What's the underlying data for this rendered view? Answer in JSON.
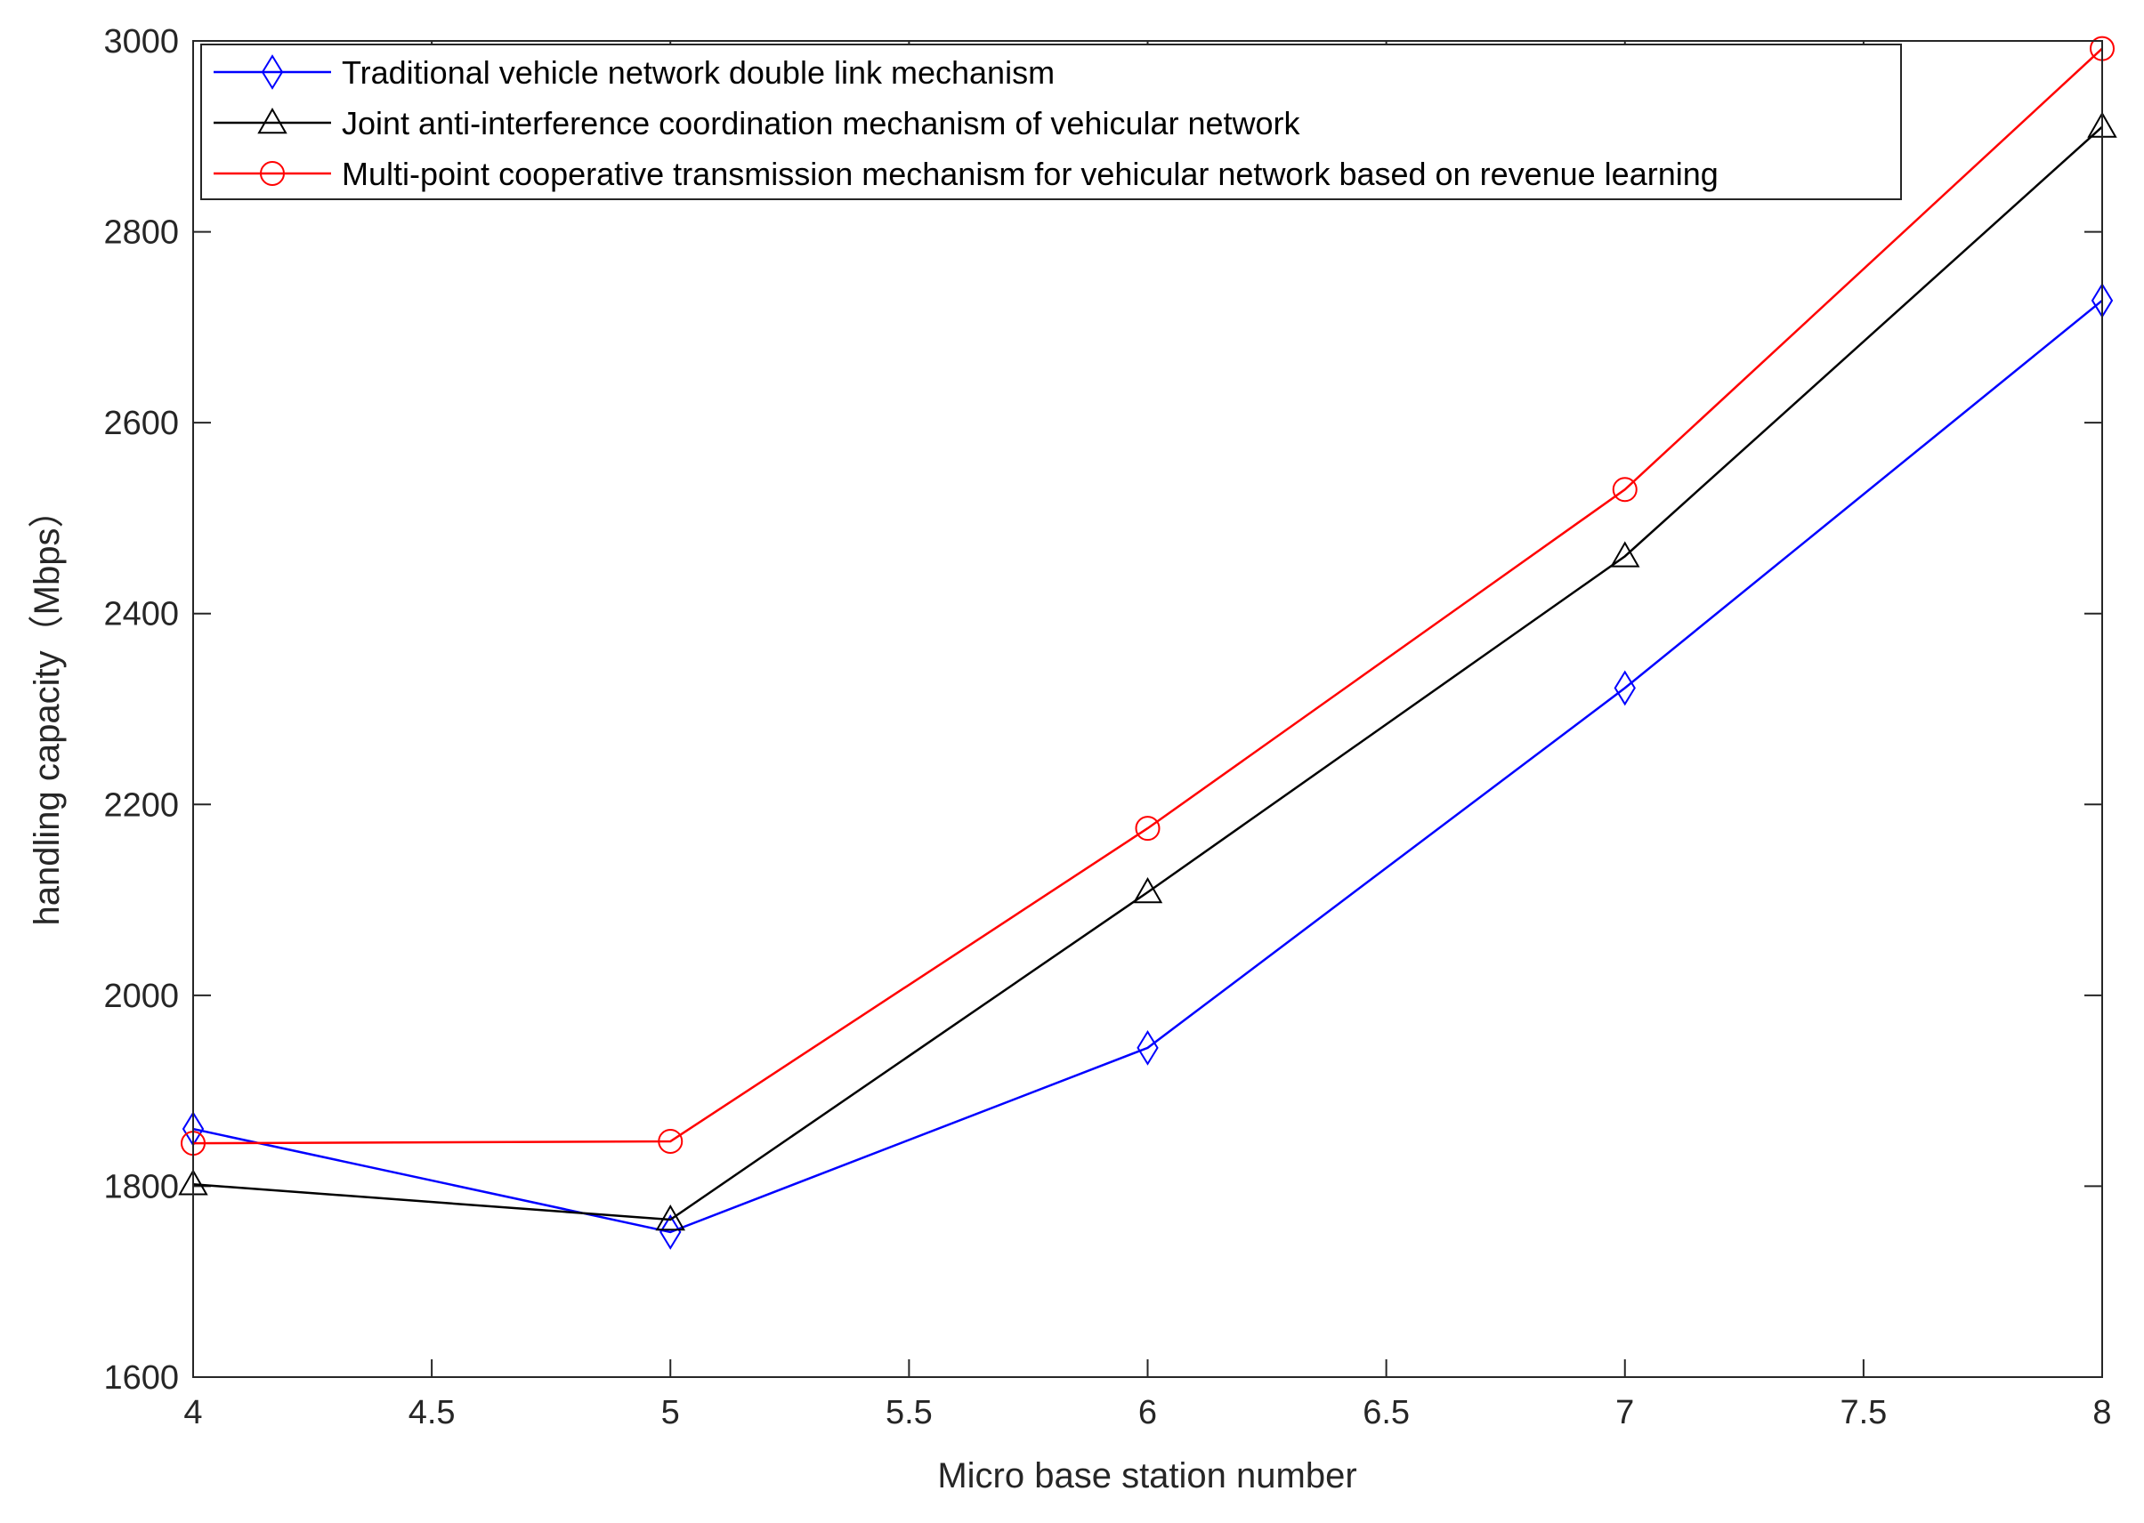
{
  "chart_data": {
    "type": "line",
    "xlabel": "Micro base station number",
    "ylabel": "handling capacity（Mbps）",
    "xlim": [
      4,
      8
    ],
    "ylim": [
      1600,
      3000
    ],
    "x_ticks": [
      "4",
      "4.5",
      "5",
      "5.5",
      "6",
      "6.5",
      "7",
      "7.5",
      "8"
    ],
    "y_ticks": [
      "1600",
      "1800",
      "2000",
      "2200",
      "2400",
      "2600",
      "2800",
      "3000"
    ],
    "x": [
      4,
      5,
      6,
      7,
      8
    ],
    "grid": false,
    "legend_position": "top-left",
    "series": [
      {
        "name": "Traditional vehicle network double link mechanism",
        "color": "#0000ff",
        "marker": "diamond",
        "values": [
          1860,
          1752,
          1945,
          2322,
          2728
        ]
      },
      {
        "name": "Joint anti-interference coordination mechanism of vehicular network",
        "color": "#000000",
        "marker": "triangle",
        "values": [
          1802,
          1765,
          2108,
          2460,
          2910
        ]
      },
      {
        "name": "Multi-point cooperative transmission mechanism for vehicular network based on revenue learning",
        "color": "#ff0000",
        "marker": "circle",
        "values": [
          1845,
          1847,
          2175,
          2530,
          2992
        ]
      }
    ]
  }
}
